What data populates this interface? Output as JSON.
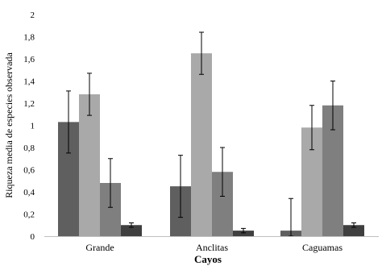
{
  "chart_data": {
    "type": "bar",
    "title": "",
    "xlabel": "Cayos",
    "ylabel": "Riqueza media de especies observada",
    "categories": [
      "Grande",
      "Anclitas",
      "Caguamas"
    ],
    "ylim": [
      0,
      2
    ],
    "yticks": [
      "0",
      "0,2",
      "0,4",
      "0,6",
      "0,8",
      "1",
      "1,2",
      "1,4",
      "1,6",
      "1,8",
      "2"
    ],
    "ytick_values": [
      0,
      0.2,
      0.4,
      0.6,
      0.8,
      1.0,
      1.2,
      1.4,
      1.6,
      1.8,
      2.0
    ],
    "grid": false,
    "legend": "none",
    "series": [
      {
        "values": [
          1.03,
          0.45,
          0.05
        ],
        "errors": [
          0.28,
          0.28,
          0.29
        ],
        "color": "#5f5f5f"
      },
      {
        "values": [
          1.28,
          1.65,
          0.98
        ],
        "errors": [
          0.19,
          0.19,
          0.2
        ],
        "color": "#a9a9a9"
      },
      {
        "values": [
          0.48,
          0.58,
          1.18
        ],
        "errors": [
          0.22,
          0.22,
          0.22
        ],
        "color": "#7f7f7f"
      },
      {
        "values": [
          0.1,
          0.05,
          0.1
        ],
        "errors": [
          0.02,
          0.02,
          0.02
        ],
        "color": "#3f3f3f"
      }
    ]
  }
}
